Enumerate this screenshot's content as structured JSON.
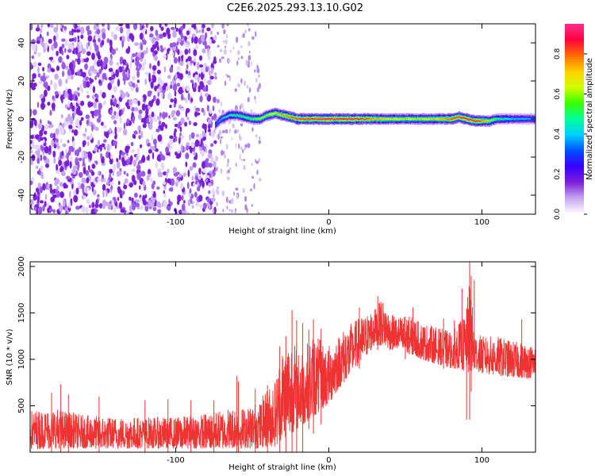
{
  "title": "C2E6.2025.293.13.10.G02",
  "chart_data": [
    {
      "type": "heatmap",
      "name": "spectrogram",
      "xlabel": "Height of straight line (km)",
      "ylabel": "Frequency (Hz)",
      "xlim": [
        -195,
        135
      ],
      "ylim": [
        -50,
        50
      ],
      "x_ticks": [
        -100,
        0,
        100
      ],
      "x_tick_labels": [
        "-100",
        "0",
        "100"
      ],
      "y_ticks": [
        -40,
        -20,
        0,
        20,
        40
      ],
      "y_tick_labels": [
        "-40",
        "-20",
        "0",
        "20",
        "40"
      ],
      "colorbar": {
        "label": "Normalized spectral amplitude",
        "range": [
          0.0,
          0.95
        ],
        "ticks": [
          0.0,
          0.2,
          0.4,
          0.6,
          0.8
        ],
        "tick_labels": [
          "0.0",
          "0.2",
          "0.4",
          "0.6",
          "0.8"
        ],
        "colormap": [
          "#ffffff",
          "#c8a8f0",
          "#7a1fd8",
          "#3a00ff",
          "#0050ff",
          "#00d0ff",
          "#00ff9a",
          "#3aff00",
          "#d0ff00",
          "#ffd000",
          "#ff6a00",
          "#ff0040",
          "#ff2d8a"
        ]
      },
      "noise_region_x": [
        -195,
        -74
      ],
      "sparse_region_x": [
        -74,
        -45
      ],
      "signal_trace": {
        "x": [
          -74,
          -70,
          -65,
          -60,
          -55,
          -50,
          -45,
          -40,
          -35,
          -30,
          -25,
          -20,
          -15,
          -10,
          -5,
          0,
          10,
          20,
          30,
          40,
          50,
          60,
          70,
          80,
          85,
          90,
          95,
          100,
          105,
          110,
          120,
          135
        ],
        "frequency": [
          -3,
          0,
          2,
          2,
          1,
          0,
          0,
          2,
          3,
          2,
          1,
          0,
          0,
          0,
          0,
          0,
          0,
          0,
          0,
          0,
          0,
          0,
          0,
          0,
          1,
          0,
          -1,
          -1,
          -1,
          0,
          0,
          0
        ],
        "amplitude": [
          0.35,
          0.45,
          0.5,
          0.55,
          0.55,
          0.6,
          0.65,
          0.7,
          0.75,
          0.8,
          0.85,
          0.9,
          0.92,
          0.9,
          0.92,
          0.95,
          0.95,
          0.9,
          0.8,
          0.75,
          0.7,
          0.72,
          0.75,
          0.85,
          0.9,
          0.95,
          0.92,
          0.85,
          0.7,
          0.55,
          0.45,
          0.4
        ]
      }
    },
    {
      "type": "line",
      "name": "snr",
      "xlabel": "Height of straight line (km)",
      "ylabel": "SNR (10 * v/v)",
      "xlim": [
        -195,
        135
      ],
      "ylim": [
        0,
        2050
      ],
      "x_ticks": [
        -100,
        0,
        100
      ],
      "x_tick_labels": [
        "-100",
        "0",
        "100"
      ],
      "y_ticks": [
        500,
        1000,
        1500,
        2000
      ],
      "y_tick_labels": [
        "500",
        "1000",
        "1500",
        "2000"
      ],
      "color": "#ee3333",
      "series": [
        {
          "name": "SNR envelope",
          "x": [
            -195,
            -180,
            -160,
            -140,
            -120,
            -100,
            -80,
            -70,
            -62,
            -55,
            -45,
            -40,
            -35,
            -30,
            -25,
            -20,
            -15,
            -10,
            -5,
            0,
            5,
            10,
            15,
            20,
            25,
            30,
            35,
            40,
            45,
            50,
            55,
            60,
            70,
            80,
            85,
            90,
            92,
            95,
            100,
            110,
            120,
            135
          ],
          "low": [
            30,
            40,
            40,
            40,
            40,
            40,
            40,
            40,
            40,
            40,
            40,
            60,
            60,
            150,
            200,
            250,
            320,
            380,
            450,
            520,
            650,
            750,
            850,
            950,
            1050,
            1150,
            1150,
            1100,
            1100,
            1050,
            1050,
            1000,
            950,
            900,
            900,
            850,
            850,
            880,
            850,
            820,
            800,
            800
          ],
          "high": [
            450,
            480,
            400,
            380,
            380,
            380,
            420,
            450,
            500,
            480,
            550,
            700,
            800,
            1150,
            1250,
            1100,
            1150,
            1300,
            1200,
            1150,
            1250,
            1350,
            1400,
            1450,
            1500,
            1550,
            1650,
            1500,
            1450,
            1480,
            1450,
            1400,
            1350,
            1300,
            1400,
            1500,
            2000,
            1300,
            1250,
            1250,
            1200,
            1150
          ],
          "spikes": [
            {
              "x": -195,
              "low": 0,
              "high": 530
            },
            {
              "x": -181,
              "low": 0,
              "high": 640
            },
            {
              "x": -175,
              "low": 0,
              "high": 730
            },
            {
              "x": -170,
              "low": 0,
              "high": 620
            },
            {
              "x": -150,
              "low": 0,
              "high": 600
            },
            {
              "x": -120,
              "low": 0,
              "high": 560
            },
            {
              "x": -105,
              "low": 0,
              "high": 570
            },
            {
              "x": -90,
              "low": 0,
              "high": 560
            },
            {
              "x": -75,
              "low": 0,
              "high": 560
            },
            {
              "x": -60,
              "low": 0,
              "high": 820
            },
            {
              "x": -59,
              "low": 0,
              "high": 760
            },
            {
              "x": -48,
              "low": 0,
              "high": 680
            },
            {
              "x": -40,
              "low": 0,
              "high": 720
            },
            {
              "x": -32,
              "low": 0,
              "high": 1140
            },
            {
              "x": -28,
              "low": 0,
              "high": 1250
            },
            {
              "x": -24,
              "low": 0,
              "high": 1530
            },
            {
              "x": -21,
              "low": 0,
              "high": 1420
            },
            {
              "x": -17,
              "low": 0,
              "high": 1390
            },
            {
              "x": -13,
              "low": 250,
              "high": 1320
            },
            {
              "x": -10,
              "low": 200,
              "high": 1430
            },
            {
              "x": -5,
              "low": 300,
              "high": 1330
            },
            {
              "x": 20,
              "low": 900,
              "high": 1560
            },
            {
              "x": 32,
              "low": 1100,
              "high": 1680
            },
            {
              "x": 34,
              "low": 1150,
              "high": 1620
            },
            {
              "x": 50,
              "low": 1000,
              "high": 1460
            },
            {
              "x": 55,
              "low": 1050,
              "high": 1560
            },
            {
              "x": 75,
              "low": 900,
              "high": 1440
            },
            {
              "x": 82,
              "low": 900,
              "high": 1420
            },
            {
              "x": 87,
              "low": 950,
              "high": 1760
            },
            {
              "x": 90,
              "low": 350,
              "high": 1550
            },
            {
              "x": 92,
              "low": 350,
              "high": 2050
            },
            {
              "x": 93,
              "low": 650,
              "high": 1900
            },
            {
              "x": 95,
              "low": 900,
              "high": 1850
            },
            {
              "x": 126,
              "low": 800,
              "high": 1430
            },
            {
              "x": 135,
              "low": 800,
              "high": 1360
            }
          ]
        }
      ]
    }
  ]
}
